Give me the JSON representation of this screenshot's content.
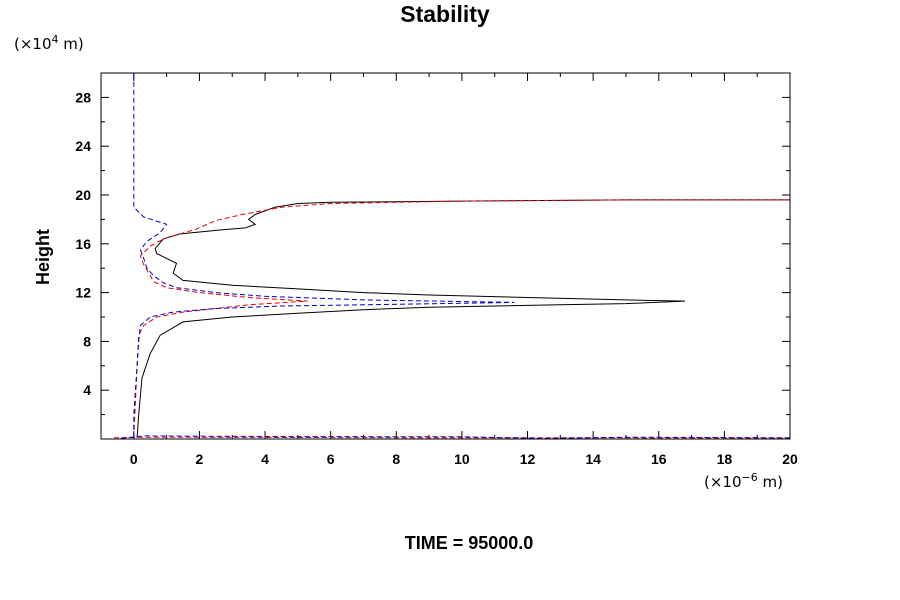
{
  "chart_data": {
    "type": "line",
    "title": "Stability",
    "ylabel": "Height",
    "xunit": {
      "prefix": "(×10",
      "exp": "−6",
      "suffix": " m)"
    },
    "yunit": {
      "prefix": "(×10",
      "exp": "4",
      "suffix": " m)"
    },
    "footer": "TIME = 95000.0",
    "xlim": [
      -1,
      20
    ],
    "ylim": [
      0,
      30
    ],
    "x_ticks": [
      0,
      2,
      4,
      6,
      8,
      10,
      12,
      14,
      16,
      18,
      20
    ],
    "y_ticks": [
      4,
      8,
      12,
      16,
      20,
      24,
      28
    ],
    "grid": false,
    "colors": {
      "solid": "#000000",
      "red": "#e8000b",
      "blue": "#0000d0"
    },
    "series": [
      {
        "color": "solid",
        "dash": false,
        "x": [
          0.1,
          0.15,
          0.25,
          0.5,
          0.8,
          1.5,
          3,
          5,
          7,
          9,
          11,
          13,
          15,
          16.8,
          15,
          12,
          9,
          7,
          5,
          3,
          1.5,
          1.2,
          1.3,
          1.0,
          0.7,
          0.65,
          0.9,
          1.4,
          2.5,
          3.4,
          3.7,
          3.5,
          3.7,
          4.3,
          5.0,
          6.0,
          10,
          15,
          20
        ],
        "y": [
          0.1,
          2,
          5,
          7,
          8.5,
          9.6,
          10.0,
          10.3,
          10.6,
          10.8,
          10.9,
          11.0,
          11.1,
          11.3,
          11.4,
          11.6,
          11.8,
          12.0,
          12.3,
          12.6,
          13.0,
          13.6,
          14.4,
          14.8,
          15.2,
          15.6,
          16.4,
          16.8,
          17.1,
          17.3,
          17.6,
          18.0,
          18.4,
          19.0,
          19.3,
          19.4,
          19.5,
          19.6,
          19.6
        ]
      },
      {
        "color": "red",
        "dash": true,
        "x": [
          0.0,
          0.05,
          0.1,
          0.15,
          0.3,
          0.7,
          1.5,
          2.5,
          3.5,
          5.3,
          3.5,
          2,
          1.0,
          0.6,
          0.5,
          0.3,
          0.2,
          0.5,
          0.9,
          1.4,
          1.9,
          2.5,
          3.3,
          4.5,
          6,
          10,
          15,
          20
        ],
        "y": [
          0.1,
          3,
          6,
          8.5,
          9.3,
          10.0,
          10.4,
          10.7,
          11.0,
          11.3,
          11.6,
          12.0,
          12.4,
          12.9,
          13.4,
          14.3,
          15.0,
          15.8,
          16.4,
          16.8,
          17.2,
          17.9,
          18.4,
          19.0,
          19.3,
          19.5,
          19.6,
          19.6
        ]
      },
      {
        "color": "blue",
        "dash": true,
        "x": [
          0.0,
          0.0,
          0.05,
          0.1,
          0.15,
          0.2,
          0.5,
          1.2,
          2.5,
          4.5,
          7,
          11.6,
          7,
          4,
          2.5,
          1.3,
          0.9,
          0.6,
          0.4,
          0.3,
          0.2,
          0.4,
          0.8,
          1.0,
          0.3,
          0.0,
          0.0
        ],
        "y": [
          0.1,
          2,
          4,
          6,
          8,
          9.3,
          10.0,
          10.4,
          10.7,
          10.9,
          11.0,
          11.2,
          11.4,
          11.7,
          12.0,
          12.4,
          12.8,
          13.4,
          14.0,
          14.8,
          15.5,
          16.2,
          16.9,
          17.6,
          18.2,
          19.0,
          30
        ]
      },
      {
        "color": "red",
        "dash": true,
        "x": [
          -0.6,
          0.3,
          5,
          10,
          15,
          20
        ],
        "y": [
          0.1,
          0.15,
          0.12,
          0.1,
          0.1,
          0.08
        ]
      },
      {
        "color": "blue",
        "dash": true,
        "x": [
          -0.4,
          0.3,
          5,
          10,
          12.5,
          15,
          20
        ],
        "y": [
          0.05,
          0.25,
          0.2,
          0.18,
          0.05,
          0.15,
          0.1
        ]
      }
    ]
  }
}
